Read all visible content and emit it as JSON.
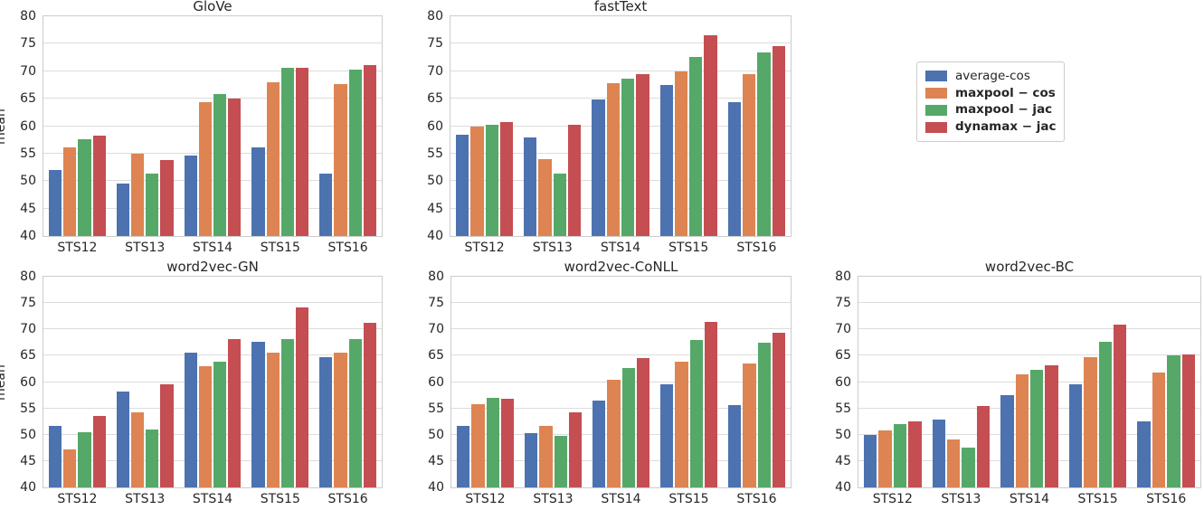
{
  "legend": {
    "items": [
      {
        "label": "average-cos",
        "color": "#4C72B0",
        "bold": false
      },
      {
        "label": "maxpool − cos",
        "color": "#DD8452",
        "bold": true
      },
      {
        "label": "maxpool − jac",
        "color": "#55A868",
        "bold": true
      },
      {
        "label": "dynamax − jac",
        "color": "#C44E52",
        "bold": true
      }
    ],
    "position": "top-right"
  },
  "chart_data": [
    {
      "type": "bar",
      "title": "GloVe",
      "ylabel": "mean",
      "ylim": [
        40,
        80
      ],
      "yticks": [
        40,
        45,
        50,
        55,
        60,
        65,
        70,
        75,
        80
      ],
      "grid": true,
      "categories": [
        "STS12",
        "STS13",
        "STS14",
        "STS15",
        "STS16"
      ],
      "series": [
        {
          "name": "average-cos",
          "color": "#4C72B0",
          "values": [
            52.1,
            49.6,
            54.6,
            56.1,
            51.4
          ]
        },
        {
          "name": "maxpool − cos",
          "color": "#DD8452",
          "values": [
            56.1,
            55.0,
            64.3,
            68.0,
            67.6
          ]
        },
        {
          "name": "maxpool − jac",
          "color": "#55A868",
          "values": [
            57.6,
            51.4,
            65.8,
            70.6,
            70.3
          ]
        },
        {
          "name": "dynamax − jac",
          "color": "#C44E52",
          "values": [
            58.2,
            53.9,
            65.1,
            70.7,
            71.1
          ]
        }
      ]
    },
    {
      "type": "bar",
      "title": "fastText",
      "ylabel": "",
      "ylim": [
        40,
        80
      ],
      "yticks": [
        40,
        45,
        50,
        55,
        60,
        65,
        70,
        75,
        80
      ],
      "grid": true,
      "categories": [
        "STS12",
        "STS13",
        "STS14",
        "STS15",
        "STS16"
      ],
      "series": [
        {
          "name": "average-cos",
          "color": "#4C72B0",
          "values": [
            58.4,
            57.9,
            64.8,
            67.5,
            64.3
          ]
        },
        {
          "name": "maxpool − cos",
          "color": "#DD8452",
          "values": [
            59.9,
            54.0,
            67.9,
            70.0,
            69.5
          ]
        },
        {
          "name": "maxpool − jac",
          "color": "#55A868",
          "values": [
            60.3,
            51.3,
            68.7,
            72.6,
            73.5
          ]
        },
        {
          "name": "dynamax − jac",
          "color": "#C44E52",
          "values": [
            60.8,
            60.2,
            69.5,
            76.6,
            74.6
          ]
        }
      ]
    },
    {
      "type": "bar",
      "title": "word2vec-GN",
      "ylabel": "mean",
      "ylim": [
        40,
        80
      ],
      "yticks": [
        40,
        45,
        50,
        55,
        60,
        65,
        70,
        75,
        80
      ],
      "grid": true,
      "categories": [
        "STS12",
        "STS13",
        "STS14",
        "STS15",
        "STS16"
      ],
      "series": [
        {
          "name": "average-cos",
          "color": "#4C72B0",
          "values": [
            51.7,
            58.2,
            65.5,
            67.6,
            64.7
          ]
        },
        {
          "name": "maxpool − cos",
          "color": "#DD8452",
          "values": [
            47.2,
            54.2,
            63.0,
            65.5,
            65.6
          ]
        },
        {
          "name": "maxpool − jac",
          "color": "#55A868",
          "values": [
            50.4,
            51.0,
            63.9,
            68.1,
            68.2
          ]
        },
        {
          "name": "dynamax − jac",
          "color": "#C44E52",
          "values": [
            53.6,
            59.5,
            68.1,
            74.2,
            71.3
          ]
        }
      ]
    },
    {
      "type": "bar",
      "title": "word2vec-CoNLL",
      "ylabel": "",
      "ylim": [
        40,
        80
      ],
      "yticks": [
        40,
        45,
        50,
        55,
        60,
        65,
        70,
        75,
        80
      ],
      "grid": true,
      "categories": [
        "STS12",
        "STS13",
        "STS14",
        "STS15",
        "STS16"
      ],
      "series": [
        {
          "name": "average-cos",
          "color": "#4C72B0",
          "values": [
            51.7,
            50.3,
            56.5,
            59.6,
            55.6
          ]
        },
        {
          "name": "maxpool − cos",
          "color": "#DD8452",
          "values": [
            55.8,
            51.6,
            60.4,
            63.9,
            63.5
          ]
        },
        {
          "name": "maxpool − jac",
          "color": "#55A868",
          "values": [
            57.0,
            49.8,
            62.7,
            67.9,
            67.4
          ]
        },
        {
          "name": "dynamax − jac",
          "color": "#C44E52",
          "values": [
            56.9,
            54.3,
            64.5,
            71.5,
            69.4
          ]
        }
      ]
    },
    {
      "type": "bar",
      "title": "word2vec-BC",
      "ylabel": "",
      "ylim": [
        40,
        80
      ],
      "yticks": [
        40,
        45,
        50,
        55,
        60,
        65,
        70,
        75,
        80
      ],
      "grid": true,
      "categories": [
        "STS12",
        "STS13",
        "STS14",
        "STS15",
        "STS16"
      ],
      "series": [
        {
          "name": "average-cos",
          "color": "#4C72B0",
          "values": [
            50.0,
            52.8,
            57.5,
            59.6,
            52.5
          ]
        },
        {
          "name": "maxpool − cos",
          "color": "#DD8452",
          "values": [
            50.8,
            49.1,
            61.5,
            64.8,
            61.8
          ]
        },
        {
          "name": "maxpool − jac",
          "color": "#55A868",
          "values": [
            52.1,
            47.5,
            62.3,
            67.7,
            65.0
          ]
        },
        {
          "name": "dynamax − jac",
          "color": "#C44E52",
          "values": [
            52.5,
            55.5,
            63.1,
            70.9,
            65.3
          ]
        }
      ]
    }
  ]
}
